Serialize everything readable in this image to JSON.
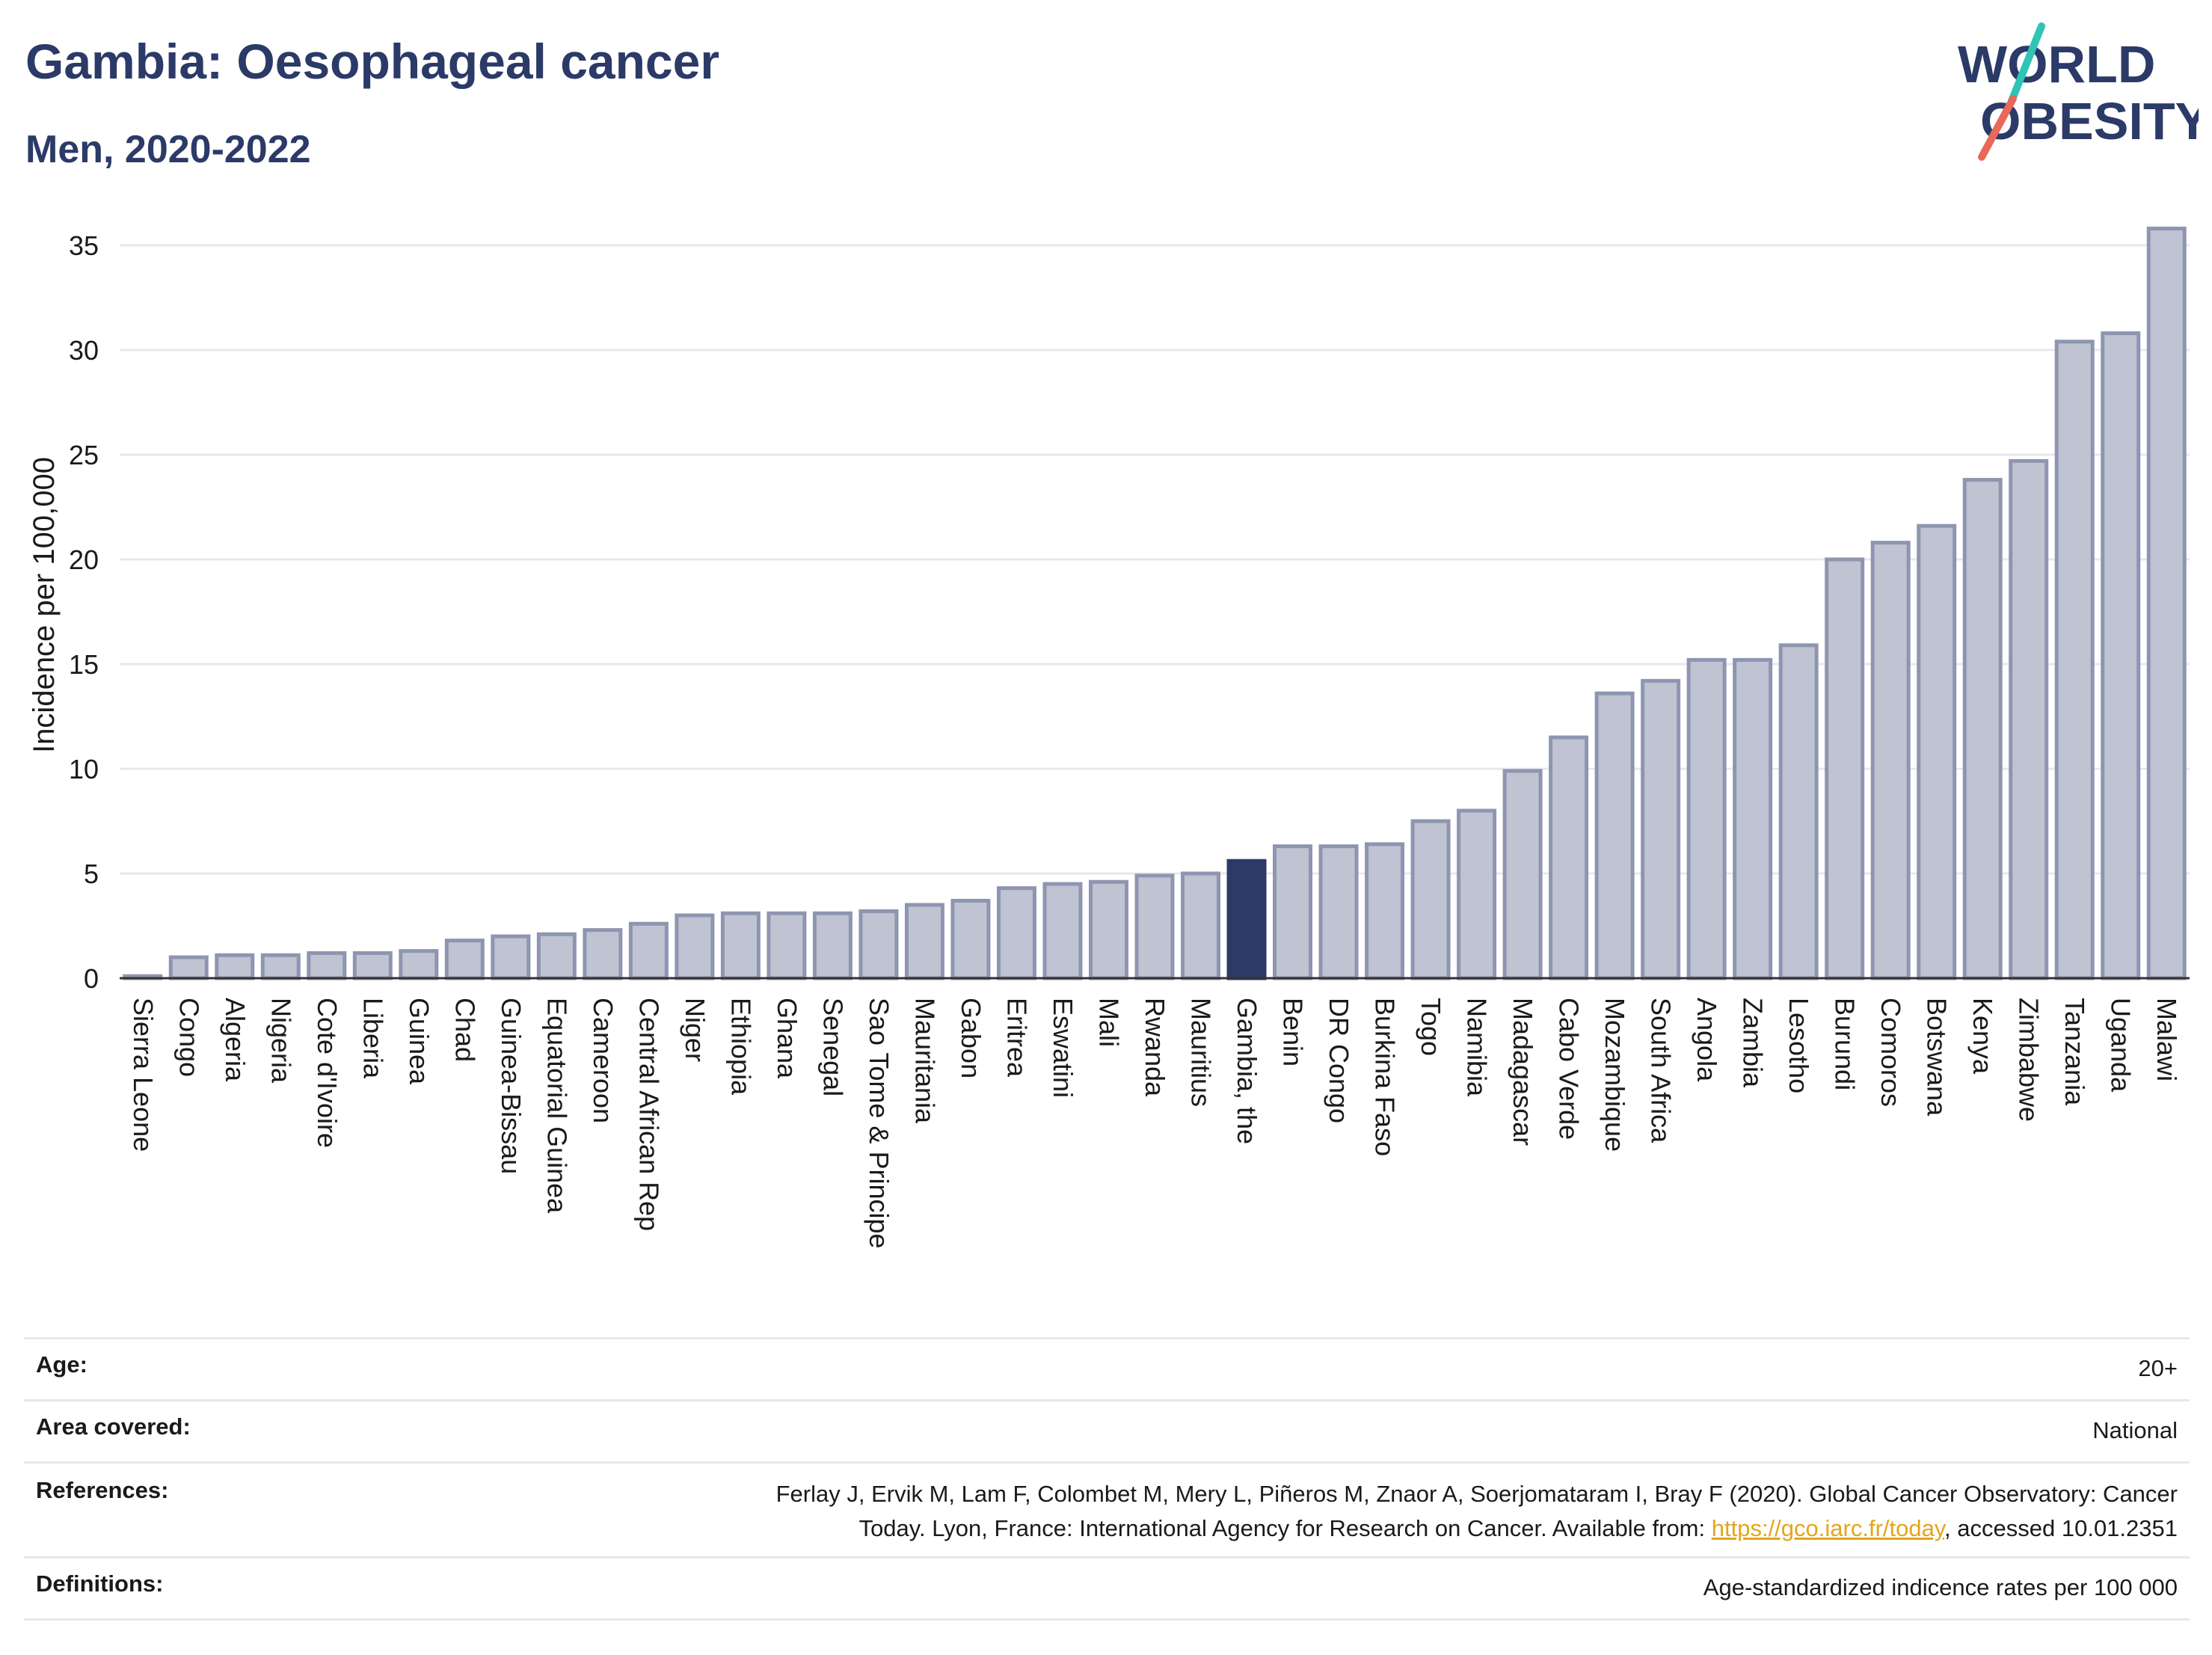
{
  "header": {
    "title": "Gambia: Oesophageal cancer",
    "subtitle": "Men, 2020-2022"
  },
  "logo": {
    "line1": "WORLD",
    "line2": "OBESITY",
    "slash_colors": [
      "#2ec4b6",
      "#e8685a"
    ],
    "text_color": "#2b3a67"
  },
  "colors": {
    "bar_fill": "#bfc3d2",
    "bar_stroke": "#8e95b0",
    "highlight": "#2b3a67",
    "grid": "#e6e8ee"
  },
  "chart_data": {
    "type": "bar",
    "ylabel": "Incidence per 100,000",
    "xlabel": "",
    "ylim": [
      0,
      36
    ],
    "yticks": [
      0,
      5,
      10,
      15,
      20,
      25,
      30,
      35
    ],
    "grid": true,
    "highlight": "Gambia, the",
    "categories": [
      "Sierra Leone",
      "Congo",
      "Algeria",
      "Nigeria",
      "Cote d'Ivoire",
      "Liberia",
      "Guinea",
      "Chad",
      "Guinea-Bissau",
      "Equatorial Guinea",
      "Cameroon",
      "Central African Rep",
      "Niger",
      "Ethiopia",
      "Ghana",
      "Senegal",
      "Sao Tome & Principe",
      "Mauritania",
      "Gabon",
      "Eritrea",
      "Eswatini",
      "Mali",
      "Rwanda",
      "Mauritius",
      "Gambia, the",
      "Benin",
      "DR Congo",
      "Burkina Faso",
      "Togo",
      "Namibia",
      "Madagascar",
      "Cabo Verde",
      "Mozambique",
      "South Africa",
      "Angola",
      "Zambia",
      "Lesotho",
      "Burundi",
      "Comoros",
      "Botswana",
      "Kenya",
      "Zimbabwe",
      "Tanzania",
      "Uganda",
      "Malawi"
    ],
    "values": [
      0.1,
      1.0,
      1.1,
      1.1,
      1.2,
      1.2,
      1.3,
      1.8,
      2.0,
      2.1,
      2.3,
      2.6,
      3.0,
      3.1,
      3.1,
      3.1,
      3.2,
      3.5,
      3.7,
      4.3,
      4.5,
      4.6,
      4.9,
      5.0,
      5.6,
      6.3,
      6.3,
      6.4,
      7.5,
      8.0,
      9.9,
      11.5,
      13.6,
      14.2,
      15.2,
      15.2,
      15.9,
      20.0,
      20.8,
      21.6,
      23.8,
      24.7,
      30.4,
      30.8,
      35.8
    ]
  },
  "meta": {
    "rows": [
      {
        "label": "Age:",
        "value": "20+"
      },
      {
        "label": "Area covered:",
        "value": "National"
      },
      {
        "label": "References:",
        "value_line1": "Ferlay J, Ervik M, Lam F, Colombet M, Mery L, Piñeros M, Znaor A, Soerjomataram I, Bray F (2020). Global Cancer Observatory: Cancer",
        "value_line2_pre": "Today. Lyon, France: International Agency for Research on Cancer. Available from: ",
        "link": "https://gco.iarc.fr/today",
        "value_line2_post": ", accessed 10.01.2351"
      },
      {
        "label": "Definitions:",
        "value": "Age-standardized indicence rates per 100 000"
      }
    ]
  }
}
